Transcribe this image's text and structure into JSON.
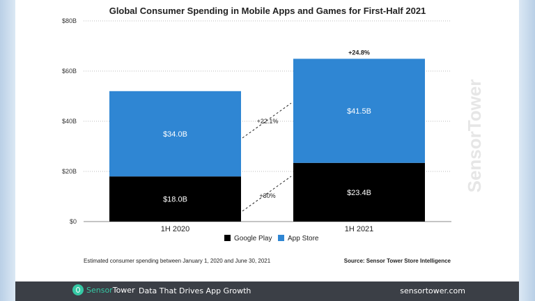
{
  "chart_data": {
    "type": "bar",
    "stacked": true,
    "title": "Global Consumer Spending in Mobile Apps and Games for First-Half 2021",
    "categories": [
      "1H 2020",
      "1H 2021"
    ],
    "series": [
      {
        "name": "Google Play",
        "values": [
          18.0,
          23.4
        ],
        "labels": [
          "$18.0B",
          "$23.4B"
        ],
        "color": "#000000"
      },
      {
        "name": "App Store",
        "values": [
          34.0,
          41.5
        ],
        "labels": [
          "$34.0B",
          "$41.5B"
        ],
        "color": "#2f86d3"
      }
    ],
    "yticks": [
      "$0",
      "$20B",
      "$40B",
      "$60B",
      "$80B"
    ],
    "ylim": [
      0,
      80
    ],
    "grid": true,
    "legend": "bottom",
    "annotations": {
      "total_growth": "+24.8%",
      "app_store_growth": "+22.1%",
      "google_play_growth": "+30%"
    },
    "note": "Estimated consumer spending between January 1, 2020 and June 30, 2021",
    "source": "Source: Sensor Tower Store Intelligence"
  },
  "watermark": "SensorTower",
  "footer": {
    "brand_a": "Sensor",
    "brand_b": "Tower",
    "tagline": "Data That Drives App Growth",
    "url": "sensortower.com"
  }
}
